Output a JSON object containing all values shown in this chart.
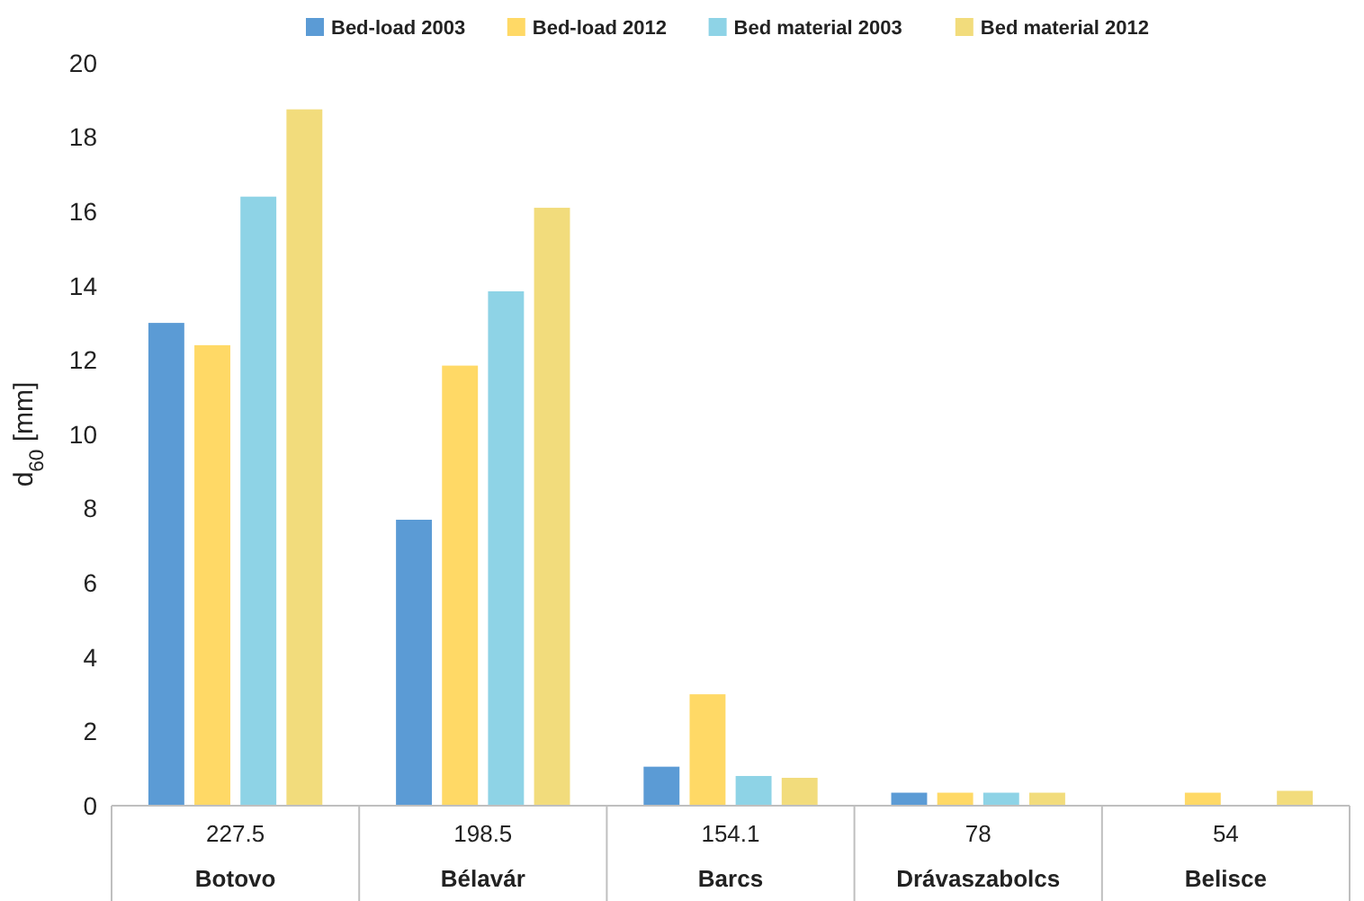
{
  "chart_data": {
    "type": "bar",
    "ylabel": "d$_{60}$ [mm]",
    "categories": [
      "227.5\nBotovo",
      "198.5\nBélavár",
      "154.1\nBarcs",
      "78\nDrávaszabolcs",
      "54\nBelisce"
    ],
    "series": [
      {
        "name": "Bed-load 2003",
        "color": "#5b9bd5",
        "values": [
          13,
          7.7,
          1.05,
          0.35,
          null
        ]
      },
      {
        "name": "Bed-load 2012",
        "color": "#ffd966",
        "values": [
          12.4,
          11.85,
          3.0,
          0.35,
          0.35
        ]
      },
      {
        "name": "Bed material 2003",
        "color": "#8ed3e6",
        "values": [
          16.4,
          13.85,
          0.8,
          0.35,
          null
        ]
      },
      {
        "name": "Bed material 2012",
        "color": "#f2dc7c",
        "values": [
          18.75,
          16.1,
          0.75,
          0.35,
          0.4
        ]
      }
    ],
    "ylim": [
      0,
      20
    ],
    "yticks": [
      0,
      2,
      4,
      6,
      8,
      10,
      12,
      14,
      16,
      18,
      20
    ],
    "legend": "top",
    "grid": false
  }
}
